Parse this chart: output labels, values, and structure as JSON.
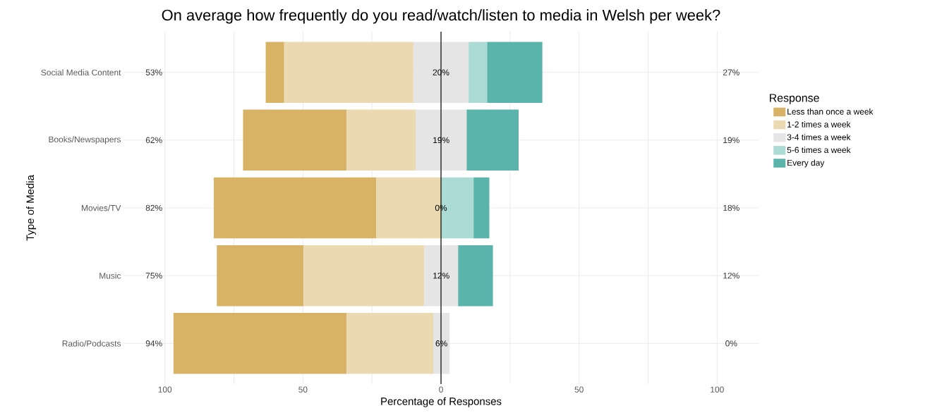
{
  "chart_data": {
    "type": "bar",
    "orientation": "horizontal",
    "title": "On average how frequently do you read/watch/listen to media in Welsh per week?",
    "xlabel": "Percentage of Responses",
    "ylabel": "Type of Media",
    "legend_title": "Response",
    "categories": [
      "Social Media Content",
      "Books/Newspapers",
      "Movies/TV",
      "Music",
      "Radio/Podcasts"
    ],
    "series": [
      {
        "name": "Less than once a week",
        "color": "#d8b365",
        "values": [
          6.7,
          37.5,
          58.9,
          31.4,
          62.7
        ],
        "base": [
          -63.5,
          -71.7,
          -82.3,
          -81.2,
          -96.9
        ]
      },
      {
        "name": "1-2 times a week",
        "color": "#ebd9b2",
        "values": [
          46.8,
          25,
          23.4,
          43.7,
          31.4
        ],
        "base": [
          -56.8,
          -34.2,
          -23.4,
          -49.8,
          -34.2
        ]
      },
      {
        "name": "3-4 times a week",
        "color": "#e5e5e5",
        "values": [
          20,
          18.5,
          0,
          12.3,
          5.9
        ],
        "base": [
          -10,
          -9.2,
          null,
          -6.1,
          -2.8
        ],
        "value_labels": [
          "20%",
          "19%",
          "0%",
          "12%",
          "6%"
        ]
      },
      {
        "name": "5-6 times a week",
        "color": "#acdad5",
        "values": [
          6.7,
          null,
          11.8,
          null,
          null
        ],
        "base": [
          10,
          null,
          0,
          null,
          null
        ]
      },
      {
        "name": "Every day",
        "color": "#5ab4ac",
        "values": [
          20,
          18.8,
          5.7,
          12.6,
          null
        ],
        "base": [
          16.7,
          9.3,
          11.8,
          6.2,
          null
        ]
      }
    ],
    "xlim": [
      -115,
      115
    ],
    "xticks": [
      {
        "value": -100,
        "label": "100"
      },
      {
        "value": -75,
        "label": null
      },
      {
        "value": -50,
        "label": "50"
      },
      {
        "value": -25,
        "label": null
      },
      0,
      {
        "value": 25,
        "label": null
      },
      50,
      {
        "value": 75,
        "label": null
      },
      100
    ],
    "ref_lines": [
      {
        "axis": "x",
        "value": 0,
        "color": "#000000"
      }
    ],
    "annotations": [
      "53%",
      "62%",
      "82%",
      "75%",
      "94%",
      "27%",
      "19%",
      "18%",
      "12%",
      "0%"
    ],
    "grid": true,
    "legend": "right"
  }
}
